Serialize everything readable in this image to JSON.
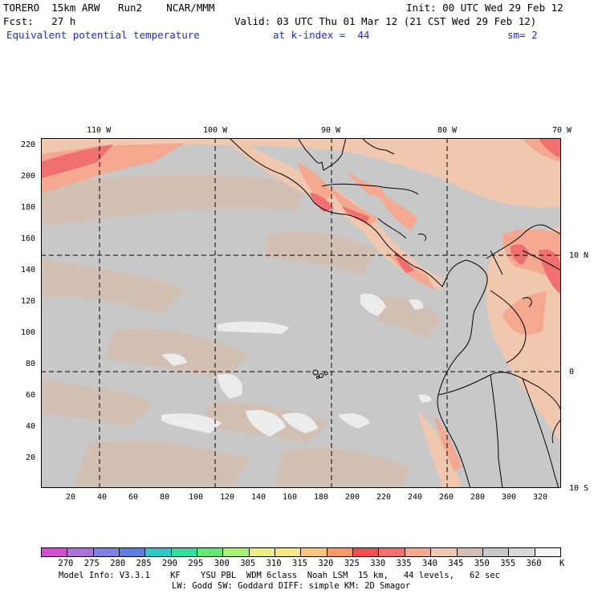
{
  "header": {
    "line1_left": "TORERO  15km ARW   Run2    NCAR/MMM",
    "line1_right": "Init: 00 UTC Wed 29 Feb 12",
    "line2_left": "Fcst:   27 h",
    "line2_right": "Valid: 03 UTC Thu 01 Mar 12 (21 CST Wed 29 Feb 12)",
    "field_name": "Equivalent potential temperature",
    "level": "at k-index =  44",
    "smoothing": "sm= 2"
  },
  "map": {
    "top_lon_labels": [
      "110 W",
      "100 W",
      "90 W",
      "80 W",
      "70 W"
    ],
    "right_lat_labels": [
      "10 N",
      "0",
      "10 S"
    ],
    "left_y_ticks": [
      "220",
      "200",
      "180",
      "160",
      "140",
      "120",
      "100",
      "80",
      "60",
      "40",
      "20"
    ],
    "bottom_x_ticks": [
      "20",
      "40",
      "60",
      "80",
      "100",
      "120",
      "140",
      "160",
      "180",
      "200",
      "220",
      "240",
      "260",
      "280",
      "300",
      "320"
    ],
    "background_color": "#c8c8c8",
    "coast_color": "#000000"
  },
  "colorbar": {
    "colors": [
      "#d050d0",
      "#a870d8",
      "#8080e8",
      "#5a7ee0",
      "#30c8c8",
      "#30e0a0",
      "#60e870",
      "#a8f070",
      "#e8f080",
      "#f8e880",
      "#f8c878",
      "#f89a6a",
      "#f05050",
      "#f07070",
      "#f4a890",
      "#f0c8b0",
      "#d2c0b4",
      "#c8c8c8",
      "#d8d8d8",
      "#f4f4f4"
    ],
    "labels": [
      "270",
      "275",
      "280",
      "285",
      "290",
      "295",
      "300",
      "305",
      "310",
      "315",
      "320",
      "325",
      "330",
      "335",
      "340",
      "345",
      "350",
      "355",
      "360"
    ],
    "unit": "K"
  },
  "footer": {
    "line1": "Model Info: V3.3.1    KF    YSU PBL  WDM 6class  Noah LSM  15 km,   44 levels,   62 sec",
    "line2": "LW: Godd SW: Goddard DIFF: simple KM: 2D Smagor"
  }
}
